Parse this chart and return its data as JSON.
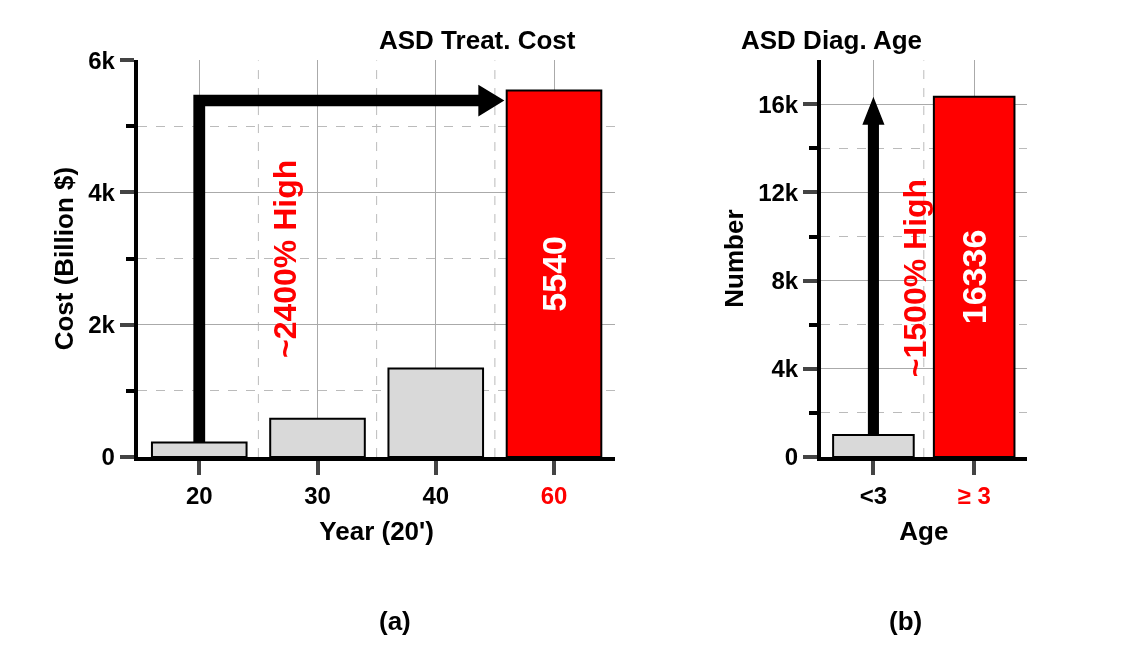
{
  "chart_data": [
    {
      "type": "bar",
      "title": "ASD Treat. Cost",
      "xlabel": "Year (20')",
      "ylabel": "Cost (Billion $)",
      "categories": [
        "20",
        "30",
        "40",
        "60"
      ],
      "values": [
        220,
        580,
        1340,
        5540
      ],
      "colors": [
        "#d9d9d9",
        "#d9d9d9",
        "#d9d9d9",
        "#ff0000"
      ],
      "value_labels": [
        null,
        null,
        null,
        "5540"
      ],
      "ylim": [
        0,
        6000
      ],
      "yticks": [
        0,
        {
          "value": 1000,
          "label": null
        },
        {
          "value": 2000,
          "label": "2k"
        },
        {
          "value": 3000,
          "label": null
        },
        {
          "value": 4000,
          "label": "4k"
        },
        {
          "value": 5000,
          "label": null
        },
        {
          "value": 6000,
          "label": "6k"
        }
      ],
      "grid": true,
      "annotations": [
        "~2400% High",
        "(a)"
      ]
    },
    {
      "type": "bar",
      "title": "ASD Diag. Age",
      "xlabel": "Age",
      "ylabel": "Number",
      "categories": [
        "<3",
        "≥ 3"
      ],
      "values": [
        1000,
        16336
      ],
      "colors": [
        "#d9d9d9",
        "#ff0000"
      ],
      "value_labels": [
        null,
        "16336"
      ],
      "ylim": [
        0,
        18000
      ],
      "yticks": [
        0,
        {
          "value": 2000,
          "label": null
        },
        {
          "value": 4000,
          "label": "4k"
        },
        {
          "value": 6000,
          "label": null
        },
        {
          "value": 8000,
          "label": "8k"
        },
        {
          "value": 10000,
          "label": null
        },
        {
          "value": 12000,
          "label": "12k"
        },
        {
          "value": 14000,
          "label": null
        },
        {
          "value": 16000,
          "label": "16k"
        }
      ],
      "grid": true,
      "annotations": [
        "~1500% High",
        "(b)"
      ]
    }
  ]
}
